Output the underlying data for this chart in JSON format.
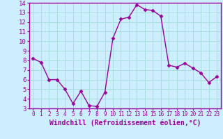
{
  "x": [
    0,
    1,
    2,
    3,
    4,
    5,
    6,
    7,
    8,
    9,
    10,
    11,
    12,
    13,
    14,
    15,
    16,
    17,
    18,
    19,
    20,
    21,
    22,
    23
  ],
  "y": [
    8.2,
    7.8,
    6.0,
    6.0,
    5.0,
    3.5,
    4.8,
    3.3,
    3.2,
    4.7,
    10.3,
    12.3,
    12.5,
    13.8,
    13.3,
    13.2,
    12.6,
    7.5,
    7.3,
    7.7,
    7.2,
    6.7,
    5.7,
    6.3
  ],
  "line_color": "#990099",
  "marker": "D",
  "marker_size": 2.5,
  "bg_color": "#cceeff",
  "grid_color": "#aadddd",
  "xlabel": "Windchill (Refroidissement éolien,°C)",
  "xlabel_color": "#990099",
  "tick_color": "#990099",
  "spine_color": "#990099",
  "ylim": [
    3,
    14
  ],
  "xlim": [
    -0.5,
    23.5
  ],
  "yticks": [
    3,
    4,
    5,
    6,
    7,
    8,
    9,
    10,
    11,
    12,
    13,
    14
  ],
  "xticks": [
    0,
    1,
    2,
    3,
    4,
    5,
    6,
    7,
    8,
    9,
    10,
    11,
    12,
    13,
    14,
    15,
    16,
    17,
    18,
    19,
    20,
    21,
    22,
    23
  ],
  "xlabel_fontsize": 7.0,
  "xtick_fontsize": 5.5,
  "ytick_fontsize": 6.5
}
